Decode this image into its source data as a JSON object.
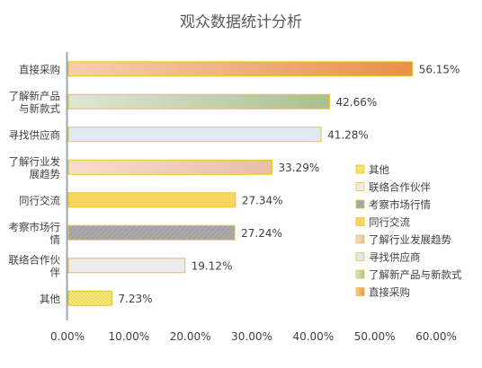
{
  "chart_data": {
    "type": "bar",
    "orientation": "horizontal",
    "title": "观众数据统计分析",
    "categories": [
      "直接采购",
      "了解新产品与新款式",
      "寻找供应商",
      "了解行业发展趋势",
      "同行交流",
      "考察市场行情",
      "联络合作伙伴",
      "其他"
    ],
    "category_lines": [
      [
        "直接采购"
      ],
      [
        "了解新产品",
        "与新款式"
      ],
      [
        "寻找供应商"
      ],
      [
        "了解行业发",
        "展趋势"
      ],
      [
        "同行交流"
      ],
      [
        "考察市场行",
        "情"
      ],
      [
        "联络合作伙",
        "伴"
      ],
      [
        "其他"
      ]
    ],
    "values": [
      56.15,
      42.66,
      41.28,
      33.29,
      27.34,
      27.24,
      19.12,
      7.23
    ],
    "data_labels": [
      "56.15%",
      "42.66%",
      "41.28%",
      "33.29%",
      "27.34%",
      "27.24%",
      "19.12%",
      "7.23%"
    ],
    "xlim": [
      0,
      60
    ],
    "xticks": [
      "0.00%",
      "10.00%",
      "20.00%",
      "30.00%",
      "40.00%",
      "50.00%",
      "60.00%"
    ],
    "grid": false,
    "legend": {
      "position": "right",
      "entries": [
        "其他",
        "联络合作伙伴",
        "考察市场行情",
        "同行交流",
        "了解行业发展趋势",
        "寻找供应商",
        "了解新产品与新款式",
        "直接采购"
      ]
    },
    "colors": {
      "直接采购": [
        "#f5cfae",
        "#e9904a"
      ],
      "了解新产品与新款式": [
        "#dfe7d2",
        "#a8c091"
      ],
      "寻找供应商": [
        "#dfe9f3",
        "#dfe9f3"
      ],
      "了解行业发展趋势": [
        "#f7dccd",
        "#e7bfa8"
      ],
      "同行交流": [
        "#fbd55f",
        "#fbd55f"
      ],
      "考察市场行情": [
        "#a6a6a6",
        "#a6a6a6"
      ],
      "联络合作伙伴": [
        "#ececec",
        "#ececec"
      ],
      "其他": [
        "#f3ea7e",
        "#e8d84a"
      ],
      "bar_border": "#e8c52e",
      "axis": "#9aa7b4"
    }
  }
}
